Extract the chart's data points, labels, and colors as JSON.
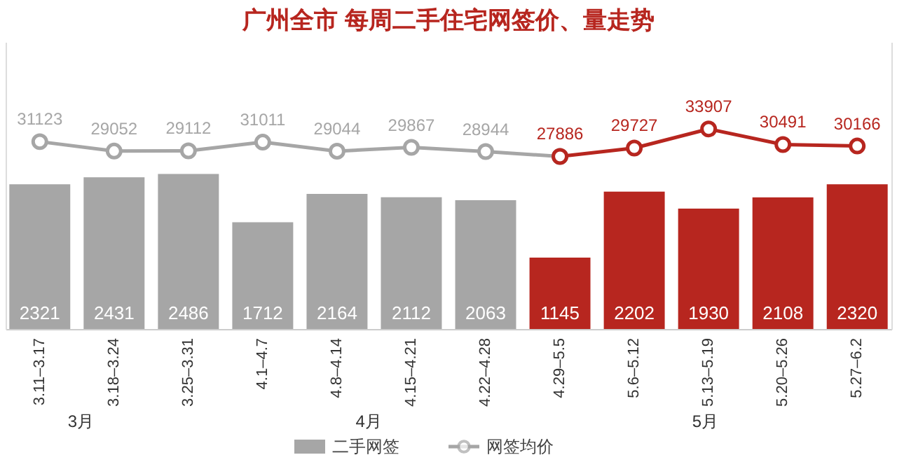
{
  "chart_data": {
    "type": "bar",
    "title": "广州全市  每周二手住宅网签价、量走势",
    "categories": [
      "3.11–3.17",
      "3.18–3.24",
      "3.25–3.31",
      "4.1–4.7",
      "4.8–4.14",
      "4.15–4.21",
      "4.22–4.28",
      "4.29–5.5",
      "5.6–5.12",
      "5.13–5.19",
      "5.20–5.26",
      "5.27–6.2"
    ],
    "series": [
      {
        "name": "二手网签",
        "color": "#a6a6a6",
        "colors": [
          "#a6a6a6",
          "#a6a6a6",
          "#a6a6a6",
          "#a6a6a6",
          "#a6a6a6",
          "#a6a6a6",
          "#a6a6a6",
          "#b7261f",
          "#b7261f",
          "#b7261f",
          "#b7261f",
          "#b7261f"
        ],
        "values": [
          2321,
          2431,
          2486,
          1712,
          2164,
          2112,
          2063,
          1145,
          2202,
          1930,
          2108,
          2320
        ],
        "value_labels": [
          "2321",
          "2431",
          "2486",
          "1712",
          "2164",
          "2112",
          "2063",
          "1145",
          "2202",
          "1930",
          "2108",
          "2320"
        ]
      },
      {
        "name": "网签均价",
        "type": "line",
        "axis": "y2",
        "color": "#a6a6a6",
        "values": [
          31123,
          29052,
          29112,
          31011,
          29044,
          29867,
          28944,
          27886,
          null,
          null,
          null,
          null
        ],
        "value_labels": [
          "31123",
          "29052",
          "29112",
          "31011",
          "29044",
          "29867",
          "28944",
          null,
          null,
          null,
          null,
          null
        ]
      },
      {
        "type": "line",
        "axis": "y2",
        "color": "#b7261f",
        "values": [
          null,
          null,
          null,
          null,
          null,
          null,
          null,
          27886,
          29727,
          33907,
          30491,
          30166
        ],
        "value_labels": [
          null,
          null,
          null,
          null,
          null,
          null,
          null,
          "27886",
          "29727",
          "33907",
          "30491",
          "30166"
        ]
      }
    ],
    "ylim": [
      0,
      4600
    ],
    "y2lim": [
      -10000,
      53000
    ],
    "tick_labels": "x",
    "marker": "circle",
    "legend": "bottom",
    "grid": false,
    "annotations": [
      "3月",
      "4月",
      "5月"
    ]
  }
}
